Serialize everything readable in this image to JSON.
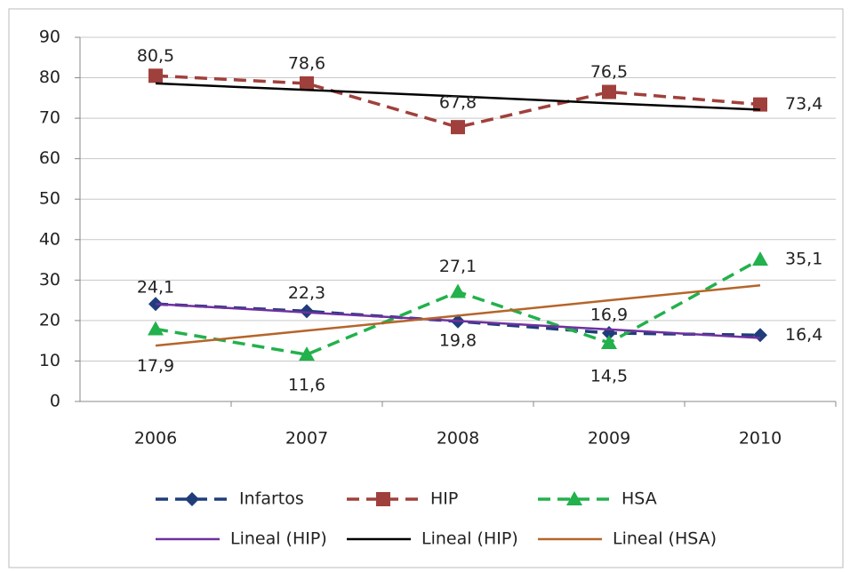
{
  "chart_data": {
    "type": "line",
    "categories": [
      "2006",
      "2007",
      "2008",
      "2009",
      "2010"
    ],
    "series": [
      {
        "name": "Infartos",
        "color": "#1f3d7a",
        "marker": "diamond",
        "dashed": true,
        "values": [
          24.1,
          22.3,
          19.8,
          16.9,
          16.4
        ],
        "value_labels": [
          "24,1",
          "22,3",
          "19,8",
          "16,9",
          "16,4"
        ]
      },
      {
        "name": "HIP",
        "color": "#a0403c",
        "marker": "square",
        "dashed": true,
        "values": [
          80.5,
          78.6,
          67.8,
          76.5,
          73.4
        ],
        "value_labels": [
          "80,5",
          "78,6",
          "67,8",
          "76,5",
          "73,4"
        ]
      },
      {
        "name": "HSA",
        "color": "#22b14c",
        "marker": "triangle",
        "dashed": true,
        "values": [
          17.9,
          11.6,
          27.1,
          14.5,
          35.1
        ],
        "value_labels": [
          "17,9",
          "11,6",
          "27,1",
          "14,5",
          "35,1"
        ]
      },
      {
        "name": "Lineal (HIP)",
        "color": "#7030a0",
        "values": [
          24.1,
          22.0,
          19.9,
          17.8,
          15.7
        ]
      },
      {
        "name": "Lineal (HIP)",
        "color": "#000000",
        "values": [
          78.6,
          77.0,
          75.4,
          73.7,
          72.1
        ]
      },
      {
        "name": "Lineal (HSA)",
        "color": "#b5652a",
        "values": [
          13.8,
          17.5,
          21.2,
          25.0,
          28.7
        ]
      }
    ],
    "ylim": [
      0,
      90
    ],
    "yticks": [
      0,
      10,
      20,
      30,
      40,
      50,
      60,
      70,
      80,
      90
    ],
    "grid": true
  }
}
